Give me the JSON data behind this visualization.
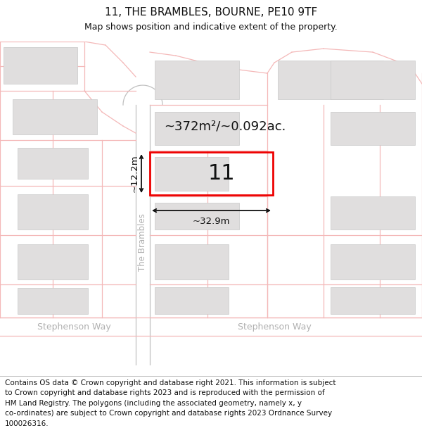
{
  "title": "11, THE BRAMBLES, BOURNE, PE10 9TF",
  "subtitle": "Map shows position and indicative extent of the property.",
  "footer": "Contains OS data © Crown copyright and database right 2021. This information is subject\nto Crown copyright and database rights 2023 and is reproduced with the permission of\nHM Land Registry. The polygons (including the associated geometry, namely x, y\nco-ordinates) are subject to Crown copyright and database rights 2023 Ordnance Survey\n100026316.",
  "bg_color": "#ffffff",
  "map_bg": "#f5f2f2",
  "road_color": "#f4b8b8",
  "road_fill": "#ffffff",
  "building_color": "#e0dede",
  "building_edge": "#c8c8c8",
  "plot_color": "#ee0000",
  "street_label_color": "#b0b0b0",
  "dim_color": "#111111",
  "area_label": "~372m²/~0.092ac.",
  "number_label": "11",
  "dim_width": "~32.9m",
  "dim_height": "~12.2m",
  "street_name": "The Brambles",
  "street_name2_left": "Stephenson Way",
  "street_name2_right": "Stephenson Way",
  "title_fontsize": 11,
  "subtitle_fontsize": 9,
  "footer_fontsize": 7.5
}
